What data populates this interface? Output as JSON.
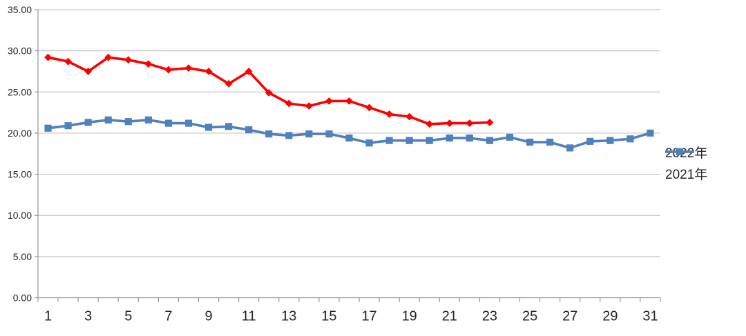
{
  "chart_data": {
    "type": "line",
    "title": "",
    "x_axis": {
      "category_count": 31,
      "tick_labels": [
        "1",
        "3",
        "5",
        "7",
        "9",
        "11",
        "13",
        "15",
        "17",
        "19",
        "21",
        "23",
        "25",
        "27",
        "29",
        "31"
      ]
    },
    "y_axis": {
      "min": 0,
      "max": 35,
      "step": 5,
      "tick_labels": [
        "0.00",
        "5.00",
        "10.00",
        "15.00",
        "20.00",
        "25.00",
        "30.00",
        "35.00"
      ]
    },
    "grid": "horizontal",
    "legend_position": "right-middle",
    "series": [
      {
        "name": "2022年",
        "color": "#FF0000",
        "marker": "diamond",
        "start_category": 1,
        "values": [
          29.2,
          28.7,
          27.5,
          29.2,
          28.9,
          28.4,
          27.7,
          27.9,
          27.5,
          26.0,
          27.5,
          24.9,
          23.6,
          23.3,
          23.9,
          23.9,
          23.1,
          22.3,
          22.0,
          21.1,
          21.2,
          21.2,
          21.3
        ]
      },
      {
        "name": "2021年",
        "color": "#4F81BD",
        "marker": "square",
        "start_category": 1,
        "values": [
          20.6,
          20.9,
          21.3,
          21.6,
          21.4,
          21.6,
          21.2,
          21.2,
          20.7,
          20.8,
          20.4,
          19.9,
          19.7,
          19.9,
          19.9,
          19.4,
          18.8,
          19.1,
          19.1,
          19.1,
          19.4,
          19.4,
          19.1,
          19.5,
          18.9,
          18.9,
          18.2,
          19.0,
          19.1,
          19.3,
          20.0
        ]
      }
    ]
  },
  "colors": {
    "grid": "#C6C6C6",
    "axis": "#969696",
    "text": "#262626",
    "background": "#FFFFFF",
    "series_2022": "#FF0000",
    "series_2021": "#4F81BD"
  }
}
